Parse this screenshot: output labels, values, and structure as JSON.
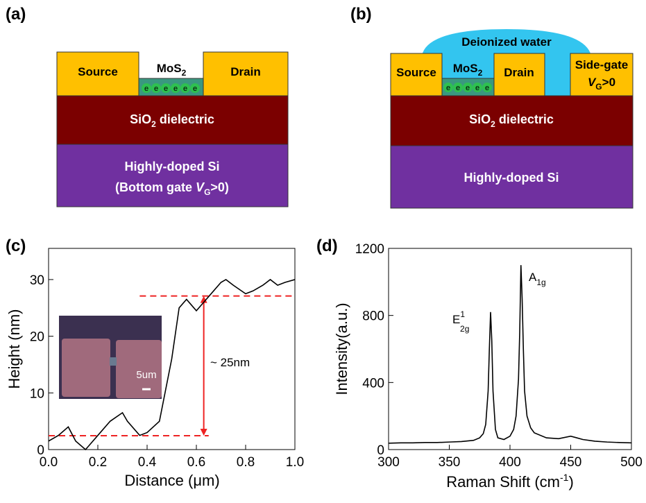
{
  "panels": {
    "a": "(a)",
    "b": "(b)",
    "c": "(c)",
    "d": "(d)"
  },
  "diagram_a": {
    "source": "Source",
    "drain": "Drain",
    "channel": [
      "MoS",
      "2"
    ],
    "electrons": [
      "e",
      "e",
      "e",
      "e",
      "e",
      "e"
    ],
    "dielectric": [
      "SiO",
      "2",
      " dielectric"
    ],
    "substrate": "Highly-doped Si",
    "gate": [
      "(Bottom gate ",
      "V",
      "G",
      ">0)"
    ]
  },
  "diagram_b": {
    "water": "Deionized water",
    "source": "Source",
    "channel": [
      "MoS",
      "2"
    ],
    "electrons": [
      "e",
      "e",
      "e",
      "e",
      "e"
    ],
    "drain": "Drain",
    "side_gate": "Side-gate",
    "side_gate_bias": [
      "V",
      "G",
      ">0"
    ],
    "dielectric": [
      "SiO",
      "2",
      " dielectric"
    ],
    "substrate": "Highly-doped Si"
  },
  "chart_data": [
    {
      "type": "line",
      "color": "#000000",
      "x": [
        0,
        0.04,
        0.08,
        0.11,
        0.15,
        0.2,
        0.25,
        0.3,
        0.32,
        0.37,
        0.4,
        0.45,
        0.5,
        0.53,
        0.56,
        0.58,
        0.6,
        0.63,
        0.65,
        0.7,
        0.72,
        0.75,
        0.8,
        0.83,
        0.87,
        0.9,
        0.93,
        0.96,
        1.0
      ],
      "values": [
        1.5,
        2.5,
        4,
        1.5,
        0,
        2.5,
        5,
        6.5,
        5,
        2.5,
        3,
        5,
        16,
        25,
        26.5,
        25.5,
        24.5,
        26,
        27,
        29.5,
        30,
        29,
        27.5,
        28,
        29,
        30,
        29,
        29.5,
        30
      ],
      "xlim": [
        0,
        1
      ],
      "ylim": [
        0,
        35.5
      ],
      "xticks": [
        {
          "value": 0,
          "label": "0.0"
        },
        {
          "value": 0.2,
          "label": "0.2"
        },
        {
          "value": 0.4,
          "label": "0.4"
        },
        {
          "value": 0.6,
          "label": "0.6"
        },
        {
          "value": 0.8,
          "label": "0.8"
        },
        {
          "value": 1.0,
          "label": "1.0"
        }
      ],
      "yticks": [
        0,
        10,
        20,
        30
      ],
      "xlabel": "Distance (μm)",
      "ylabel": "Height (nm)",
      "reference_lines": [
        {
          "y": 27.1,
          "x": [
            0.37,
            1.0
          ],
          "color": "#ee2222"
        },
        {
          "y": 2.45,
          "x": [
            0,
            0.65
          ],
          "color": "#ee2222"
        }
      ],
      "arrow": {
        "x": 0.63,
        "y": [
          27.1,
          2.45
        ],
        "color": "#ee2222"
      },
      "annotation": "~ 25nm",
      "inset_scale": "5um"
    },
    {
      "type": "line",
      "color": "#000000",
      "x": [
        300,
        310,
        320,
        330,
        340,
        350,
        360,
        370,
        375,
        378,
        380,
        382,
        383,
        384,
        385,
        386,
        388,
        390,
        395,
        400,
        403,
        405,
        407,
        408,
        409,
        410,
        411,
        412,
        414,
        417,
        420,
        430,
        440,
        450,
        455,
        460,
        470,
        480,
        490,
        500
      ],
      "values": [
        38,
        40,
        40,
        42,
        42,
        45,
        48,
        55,
        70,
        95,
        150,
        350,
        600,
        820,
        650,
        350,
        120,
        70,
        60,
        80,
        120,
        200,
        420,
        700,
        1100,
        900,
        600,
        350,
        200,
        130,
        100,
        70,
        65,
        80,
        70,
        60,
        50,
        45,
        42,
        40
      ],
      "xlim": [
        300,
        500
      ],
      "ylim": [
        0,
        1200
      ],
      "xticks": [
        300,
        350,
        400,
        450,
        500
      ],
      "yticks": [
        0,
        400,
        800,
        1200
      ],
      "xlabel": [
        "Raman Shift (cm",
        "-1",
        ")"
      ],
      "ylabel": "Intensity(a.u.)",
      "annotations": {
        "e2g": [
          "E",
          "1",
          "2g"
        ],
        "a1g": [
          "A",
          "1g"
        ]
      }
    }
  ]
}
